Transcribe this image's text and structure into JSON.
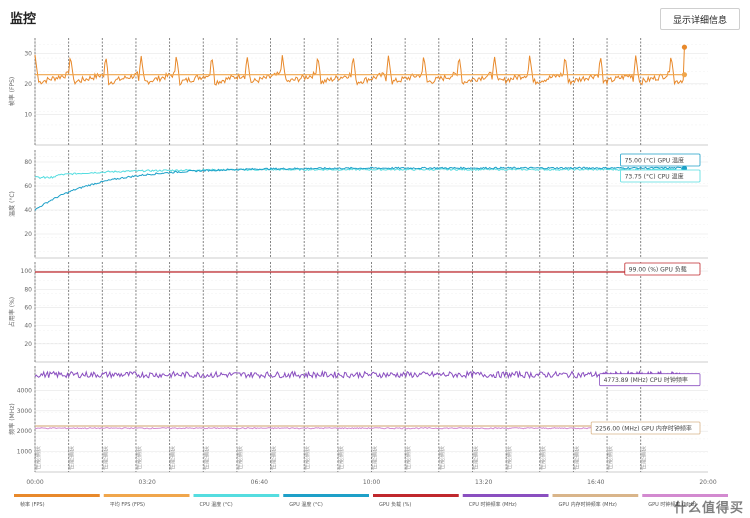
{
  "header": {
    "title": "监控",
    "detail_button": "显示详细信息"
  },
  "watermark": "什么值得买",
  "marker_label": "性能捕获",
  "chart_data": [
    {
      "type": "line",
      "ylabel": "帧率 (FPS)",
      "ylim": [
        0,
        35
      ],
      "yticks": [
        10,
        20,
        30
      ],
      "series": [
        {
          "name": "帧率 (FPS)",
          "color": "#e8892b",
          "pattern": "sawtooth",
          "base": 20.5,
          "peak": 29.5,
          "period_min": 1.05,
          "end_value": 32
        },
        {
          "name": "平均 FPS (FPS)",
          "color": "#f0a64c",
          "pattern": "flat",
          "value": 23
        }
      ]
    },
    {
      "type": "line",
      "ylabel": "温度 (°C)",
      "ylim": [
        0,
        90
      ],
      "yticks": [
        20,
        40,
        60,
        80
      ],
      "series": [
        {
          "name": "CPU 温度 (°C)",
          "color": "#55dde0",
          "pattern": "warmup",
          "start": 67,
          "end": 73.75
        },
        {
          "name": "GPU 温度 (°C)",
          "color": "#1ea0c8",
          "pattern": "warmup",
          "start": 40,
          "end": 75.0
        }
      ],
      "value_labels": [
        {
          "text": "75.00 (°C) GPU 温度",
          "color": "#1ea0c8"
        },
        {
          "text": "73.75 (°C) CPU 温度",
          "color": "#55dde0"
        }
      ]
    },
    {
      "type": "line",
      "ylabel": "占用率 (%)",
      "ylim": [
        0,
        110
      ],
      "yticks": [
        20,
        40,
        60,
        80,
        100
      ],
      "series": [
        {
          "name": "GPU 负载 (%)",
          "color": "#c0282d",
          "pattern": "flat",
          "value": 99
        }
      ],
      "value_labels": [
        {
          "text": "99.00 (%) GPU 负载",
          "color": "#c0282d"
        }
      ]
    },
    {
      "type": "line",
      "ylabel": "频率 (MHz)",
      "ylim": [
        0,
        5200
      ],
      "yticks": [
        1000,
        2000,
        3000,
        4000
      ],
      "series": [
        {
          "name": "CPU 时钟频率 (MHz)",
          "color": "#8a4fc0",
          "pattern": "noisy",
          "value": 4773.89,
          "noise": 150
        },
        {
          "name": "GPU 内存时钟频率 (MHz)",
          "color": "#d9b58a",
          "pattern": "flat",
          "value": 2256
        },
        {
          "name": "GPU 时钟频率 (MHz)",
          "color": "#d38ad0",
          "pattern": "noisy",
          "value": 2150,
          "noise": 30
        }
      ],
      "value_labels": [
        {
          "text": "4773.89 (MHz) CPU 时钟频率",
          "color": "#8a4fc0"
        },
        {
          "text": "2256.00 (MHz) GPU 内存时钟频率",
          "color": "#d9b58a"
        }
      ]
    }
  ],
  "x_axis": {
    "ticks": [
      "00:00",
      "03:20",
      "06:40",
      "10:00",
      "13:20",
      "16:40",
      "20:00"
    ],
    "range_min": [
      0,
      20
    ],
    "markers_min": [
      0,
      1,
      2,
      3,
      4,
      5,
      6,
      7,
      8,
      9,
      10,
      11,
      12,
      13,
      14,
      15,
      16,
      17,
      18
    ]
  },
  "legend": [
    {
      "label": "帧率 (FPS)",
      "color": "#e8892b"
    },
    {
      "label": "平均 FPS (FPS)",
      "color": "#f0a64c"
    },
    {
      "label": "CPU 温度 (°C)",
      "color": "#55dde0"
    },
    {
      "label": "GPU 温度 (°C)",
      "color": "#1ea0c8"
    },
    {
      "label": "GPU 负载 (%)",
      "color": "#c0282d"
    },
    {
      "label": "CPU 时钟频率 (MHz)",
      "color": "#8a4fc0"
    },
    {
      "label": "GPU 内存时钟频率 (MHz)",
      "color": "#d9b58a"
    },
    {
      "label": "GPU 时钟频率 (MHz)",
      "color": "#d38ad0"
    }
  ]
}
